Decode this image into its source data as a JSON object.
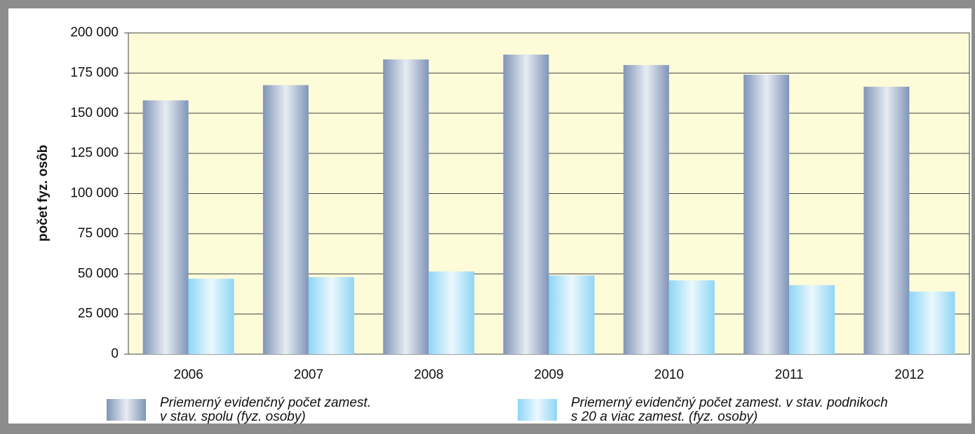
{
  "chart_data": {
    "type": "bar",
    "y_label": "počet fyz. osôb",
    "categories": [
      "2006",
      "2007",
      "2008",
      "2009",
      "2010",
      "2011",
      "2012"
    ],
    "series": [
      {
        "name": "Priemerný evidenčný počet zamest.\nv stav. spolu (fyz. osoby)",
        "color": "#7f95b8",
        "values": [
          158000,
          167500,
          183500,
          186500,
          180000,
          174000,
          166500
        ]
      },
      {
        "name": "Priemerný evidenčný počet zamest. v stav. podnikoch\ns 20 a viac zamest. (fyz. osoby)",
        "color": "#8fd6f5",
        "values": [
          47000,
          48000,
          51500,
          49000,
          46000,
          43000,
          39000
        ]
      }
    ],
    "ylim": [
      0,
      200000
    ],
    "yticks": [
      0,
      {
        "value": 25000,
        "label": "25 000"
      },
      {
        "value": 50000,
        "label": "50 000"
      },
      {
        "value": 75000,
        "label": "75 000"
      },
      {
        "value": 100000,
        "label": "100 000"
      },
      {
        "value": 125000,
        "label": "125 000"
      },
      {
        "value": 150000,
        "label": "150 000"
      },
      {
        "value": 175000,
        "label": "175 000"
      },
      {
        "value": 200000,
        "label": "200 000"
      }
    ],
    "grid": true,
    "plot_background": "#fdfbd8",
    "legend": "bottom"
  }
}
